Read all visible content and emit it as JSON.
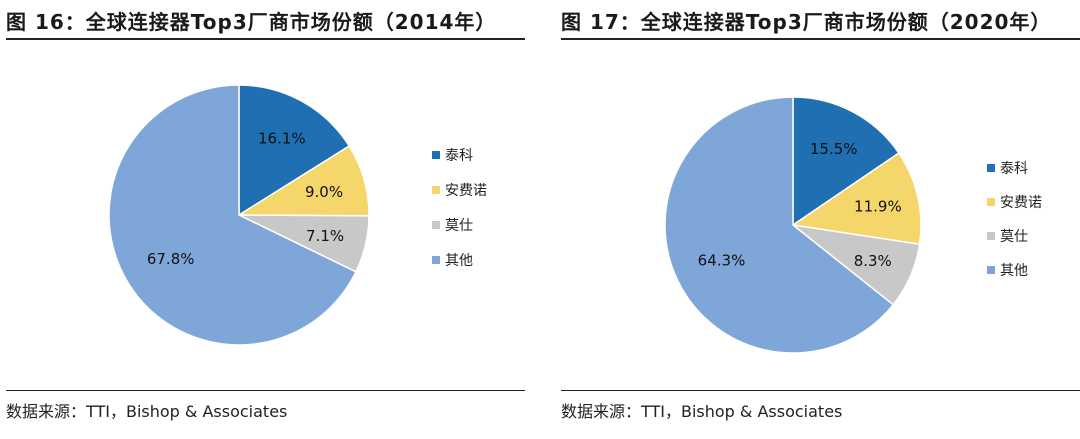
{
  "source": "数据来源：TTI，Bishop & Associates",
  "chart_data": [
    {
      "type": "pie",
      "title": "图 16：全球连接器Top3厂商市场份额（2014年）",
      "labels": [
        "泰科",
        "安费诺",
        "莫仕",
        "其他"
      ],
      "values": [
        16.1,
        9.0,
        7.1,
        67.8
      ],
      "data_labels": [
        "16.1%",
        "9.0%",
        "7.1%",
        "67.8%"
      ],
      "colors": [
        "#1f6fb2",
        "#f5d66b",
        "#c8c8c8",
        "#7fa6d8"
      ],
      "legend": "right"
    },
    {
      "type": "pie",
      "title": "图 17：全球连接器Top3厂商市场份额（2020年）",
      "labels": [
        "泰科",
        "安费诺",
        "莫仕",
        "其他"
      ],
      "values": [
        15.5,
        11.9,
        8.3,
        64.3
      ],
      "data_labels": [
        "15.5%",
        "11.9%",
        "8.3%",
        "64.3%"
      ],
      "colors": [
        "#1f6fb2",
        "#f5d66b",
        "#c8c8c8",
        "#7fa6d8"
      ],
      "legend": "right"
    }
  ]
}
